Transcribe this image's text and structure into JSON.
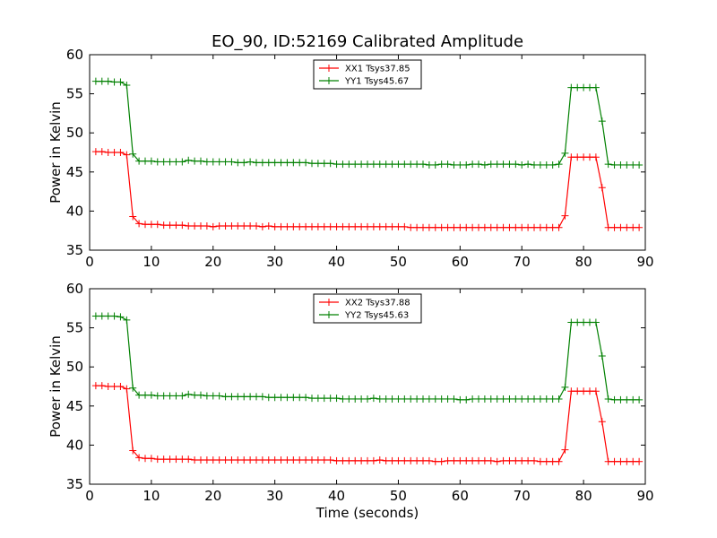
{
  "figure_title": "EO_90, ID:52169 Calibrated Amplitude",
  "colors": {
    "red_series": "#ff0000",
    "green_series": "#008000",
    "axes": "#000000",
    "background": "#ffffff"
  },
  "chart_data": [
    {
      "type": "line",
      "title": "EO_90, ID:52169 Calibrated Amplitude",
      "xlabel": "",
      "ylabel": "Power in Kelvin",
      "xlim": [
        0,
        90
      ],
      "ylim": [
        35,
        60
      ],
      "xticks": [
        0,
        10,
        20,
        30,
        40,
        50,
        60,
        70,
        80,
        90
      ],
      "yticks": [
        35,
        40,
        45,
        50,
        55,
        60
      ],
      "grid": false,
      "legend_position": "top-center",
      "marker": "+",
      "x": [
        1,
        2,
        3,
        4,
        5,
        6,
        7,
        8,
        9,
        10,
        11,
        12,
        13,
        14,
        15,
        16,
        17,
        18,
        19,
        20,
        21,
        22,
        23,
        24,
        25,
        26,
        27,
        28,
        29,
        30,
        31,
        32,
        33,
        34,
        35,
        36,
        37,
        38,
        39,
        40,
        41,
        42,
        43,
        44,
        45,
        46,
        47,
        48,
        49,
        50,
        51,
        52,
        53,
        54,
        55,
        56,
        57,
        58,
        59,
        60,
        61,
        62,
        63,
        64,
        65,
        66,
        67,
        68,
        69,
        70,
        71,
        72,
        73,
        74,
        75,
        76,
        77,
        78,
        79,
        80,
        81,
        82,
        83,
        84,
        85,
        86,
        87,
        88,
        89
      ],
      "series": [
        {
          "name": "XX1 Tsys37.85",
          "color": "#ff0000",
          "values": [
            47.6,
            47.6,
            47.5,
            47.5,
            47.5,
            47.2,
            39.3,
            38.4,
            38.3,
            38.3,
            38.3,
            38.2,
            38.2,
            38.2,
            38.2,
            38.1,
            38.1,
            38.1,
            38.1,
            38.0,
            38.1,
            38.1,
            38.1,
            38.1,
            38.1,
            38.1,
            38.1,
            38.0,
            38.1,
            38.0,
            38.0,
            38.0,
            38.0,
            38.0,
            38.0,
            38.0,
            38.0,
            38.0,
            38.0,
            38.0,
            38.0,
            38.0,
            38.0,
            38.0,
            38.0,
            38.0,
            38.0,
            38.0,
            38.0,
            38.0,
            38.0,
            37.9,
            37.9,
            37.9,
            37.9,
            37.9,
            37.9,
            37.9,
            37.9,
            37.9,
            37.9,
            37.9,
            37.9,
            37.9,
            37.9,
            37.9,
            37.9,
            37.9,
            37.9,
            37.9,
            37.9,
            37.9,
            37.9,
            37.9,
            37.9,
            37.9,
            39.4,
            46.9,
            46.9,
            46.9,
            46.9,
            46.9,
            43.0,
            37.9,
            37.9,
            37.9,
            37.9,
            37.9,
            37.9
          ]
        },
        {
          "name": "YY1 Tsys45.67",
          "color": "#008000",
          "values": [
            56.6,
            56.6,
            56.6,
            56.5,
            56.5,
            56.1,
            47.3,
            46.4,
            46.4,
            46.4,
            46.3,
            46.3,
            46.3,
            46.3,
            46.3,
            46.5,
            46.4,
            46.4,
            46.3,
            46.3,
            46.3,
            46.3,
            46.3,
            46.2,
            46.2,
            46.3,
            46.2,
            46.2,
            46.2,
            46.2,
            46.2,
            46.2,
            46.2,
            46.2,
            46.2,
            46.1,
            46.1,
            46.1,
            46.1,
            46.0,
            46.0,
            46.0,
            46.0,
            46.0,
            46.0,
            46.0,
            46.0,
            46.0,
            46.0,
            46.0,
            46.0,
            46.0,
            46.0,
            46.0,
            45.9,
            45.9,
            46.0,
            46.0,
            45.9,
            45.9,
            45.9,
            46.0,
            46.0,
            45.9,
            46.0,
            46.0,
            46.0,
            46.0,
            46.0,
            45.9,
            46.0,
            45.9,
            45.9,
            45.9,
            45.9,
            46.0,
            47.4,
            55.8,
            55.8,
            55.8,
            55.8,
            55.8,
            51.5,
            46.0,
            45.9,
            45.9,
            45.9,
            45.9,
            45.9
          ]
        }
      ]
    },
    {
      "type": "line",
      "title": "",
      "xlabel": "Time (seconds)",
      "ylabel": "Power in Kelvin",
      "xlim": [
        0,
        90
      ],
      "ylim": [
        35,
        60
      ],
      "xticks": [
        0,
        10,
        20,
        30,
        40,
        50,
        60,
        70,
        80,
        90
      ],
      "yticks": [
        35,
        40,
        45,
        50,
        55,
        60
      ],
      "grid": false,
      "legend_position": "top-center",
      "marker": "+",
      "x": [
        1,
        2,
        3,
        4,
        5,
        6,
        7,
        8,
        9,
        10,
        11,
        12,
        13,
        14,
        15,
        16,
        17,
        18,
        19,
        20,
        21,
        22,
        23,
        24,
        25,
        26,
        27,
        28,
        29,
        30,
        31,
        32,
        33,
        34,
        35,
        36,
        37,
        38,
        39,
        40,
        41,
        42,
        43,
        44,
        45,
        46,
        47,
        48,
        49,
        50,
        51,
        52,
        53,
        54,
        55,
        56,
        57,
        58,
        59,
        60,
        61,
        62,
        63,
        64,
        65,
        66,
        67,
        68,
        69,
        70,
        71,
        72,
        73,
        74,
        75,
        76,
        77,
        78,
        79,
        80,
        81,
        82,
        83,
        84,
        85,
        86,
        87,
        88,
        89
      ],
      "series": [
        {
          "name": "XX2 Tsys37.88",
          "color": "#ff0000",
          "values": [
            47.6,
            47.6,
            47.5,
            47.5,
            47.5,
            47.2,
            39.3,
            38.4,
            38.3,
            38.3,
            38.2,
            38.2,
            38.2,
            38.2,
            38.2,
            38.2,
            38.1,
            38.1,
            38.1,
            38.1,
            38.1,
            38.1,
            38.1,
            38.1,
            38.1,
            38.1,
            38.1,
            38.1,
            38.1,
            38.1,
            38.1,
            38.1,
            38.1,
            38.1,
            38.1,
            38.1,
            38.1,
            38.1,
            38.1,
            38.0,
            38.0,
            38.0,
            38.0,
            38.0,
            38.0,
            38.0,
            38.1,
            38.0,
            38.0,
            38.0,
            38.0,
            38.0,
            38.0,
            38.0,
            38.0,
            37.9,
            37.9,
            38.0,
            38.0,
            38.0,
            38.0,
            38.0,
            38.0,
            38.0,
            38.0,
            37.9,
            38.0,
            38.0,
            38.0,
            38.0,
            38.0,
            38.0,
            37.9,
            37.9,
            37.9,
            37.9,
            39.4,
            46.9,
            46.9,
            46.9,
            46.9,
            46.9,
            43.0,
            37.9,
            37.9,
            37.9,
            37.9,
            37.9,
            37.9
          ]
        },
        {
          "name": "YY2 Tsys45.63",
          "color": "#008000",
          "values": [
            56.5,
            56.5,
            56.5,
            56.5,
            56.4,
            56.0,
            47.3,
            46.4,
            46.4,
            46.4,
            46.3,
            46.3,
            46.3,
            46.3,
            46.3,
            46.5,
            46.4,
            46.4,
            46.3,
            46.3,
            46.3,
            46.2,
            46.2,
            46.2,
            46.2,
            46.2,
            46.2,
            46.2,
            46.1,
            46.1,
            46.1,
            46.1,
            46.1,
            46.1,
            46.1,
            46.0,
            46.0,
            46.0,
            46.0,
            46.0,
            45.9,
            45.9,
            45.9,
            45.9,
            45.9,
            46.0,
            45.9,
            45.9,
            45.9,
            45.9,
            45.9,
            45.9,
            45.9,
            45.9,
            45.9,
            45.9,
            45.9,
            45.9,
            45.9,
            45.8,
            45.8,
            45.9,
            45.9,
            45.9,
            45.9,
            45.9,
            45.9,
            45.9,
            45.9,
            45.9,
            45.9,
            45.9,
            45.9,
            45.9,
            45.9,
            45.9,
            47.4,
            55.7,
            55.7,
            55.7,
            55.7,
            55.7,
            51.4,
            45.9,
            45.8,
            45.8,
            45.8,
            45.8,
            45.8
          ]
        }
      ]
    }
  ]
}
